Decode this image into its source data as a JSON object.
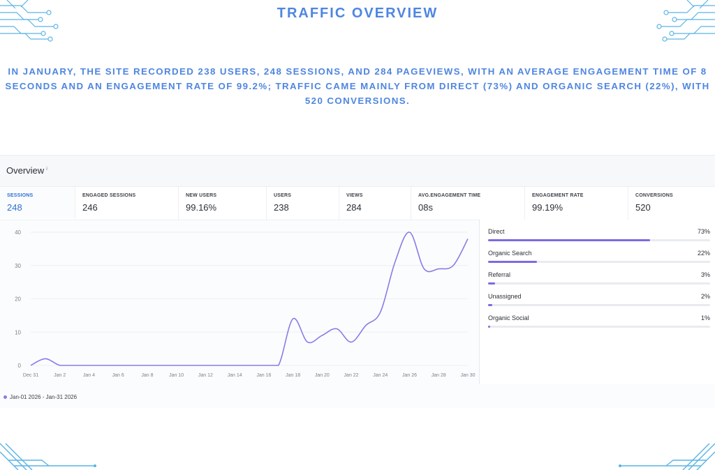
{
  "page_title": "TRAFFIC OVERVIEW",
  "summary": "IN JANUARY, THE SITE RECORDED 238 USERS, 248 SESSIONS, AND 284 PAGEVIEWS, WITH AN AVERAGE ENGAGEMENT TIME OF 8 SECONDS AND AN ENGAGEMENT RATE OF 99.2%; TRAFFIC CAME MAINLY FROM DIRECT (73%) AND ORGANIC SEARCH (22%), WITH 520 CONVERSIONS.",
  "overview": {
    "title": "Overview",
    "info_marker": "i",
    "metrics": [
      {
        "label": "SESSIONS",
        "value": "248"
      },
      {
        "label": "ENGAGED SESSIONS",
        "value": "246"
      },
      {
        "label": "NEW USERS",
        "value": "99.16%"
      },
      {
        "label": "USERS",
        "value": "238"
      },
      {
        "label": "VIEWS",
        "value": "284"
      },
      {
        "label": "AVG.ENGAGEMENT TIME",
        "value": "08s"
      },
      {
        "label": "ENGAGEMENT RATE",
        "value": "99.19%"
      },
      {
        "label": "CONVERSIONS",
        "value": "520"
      }
    ]
  },
  "sources": [
    {
      "name": "Direct",
      "pct": "73%",
      "fraction": 0.73
    },
    {
      "name": "Organic Search",
      "pct": "22%",
      "fraction": 0.22
    },
    {
      "name": "Referral",
      "pct": "3%",
      "fraction": 0.03
    },
    {
      "name": "Unassigned",
      "pct": "2%",
      "fraction": 0.02
    },
    {
      "name": "Organic Social",
      "pct": "1%",
      "fraction": 0.01
    }
  ],
  "colors": {
    "title": "#4f86e0",
    "line": "#8b7be6",
    "bar_fill": "#7b6be0",
    "active_metric": "#2f6fd1",
    "decor": "#5ab4e6"
  },
  "chart_data": {
    "type": "line",
    "series": [
      {
        "name": "Jan-01 2026 - Jan-31 2026",
        "x": [
          "Dec 31",
          "Jan 1",
          "Jan 2",
          "Jan 3",
          "Jan 4",
          "Jan 5",
          "Jan 6",
          "Jan 7",
          "Jan 8",
          "Jan 9",
          "Jan 10",
          "Jan 11",
          "Jan 12",
          "Jan 13",
          "Jan 14",
          "Jan 15",
          "Jan 16",
          "Jan 17",
          "Jan 18",
          "Jan 19",
          "Jan 20",
          "Jan 21",
          "Jan 22",
          "Jan 23",
          "Jan 24",
          "Jan 25",
          "Jan 26",
          "Jan 27",
          "Jan 28",
          "Jan 29",
          "Jan 30"
        ],
        "values": [
          0,
          2,
          0,
          0,
          0,
          0,
          0,
          0,
          0,
          0,
          0,
          0,
          0,
          0,
          0,
          0,
          0,
          0,
          14,
          7,
          9,
          11,
          7,
          12,
          16,
          31,
          40,
          29,
          29,
          30,
          38
        ]
      }
    ],
    "xticks": [
      "Dec 31",
      "Jan 2",
      "Jan 4",
      "Jan 6",
      "Jan 8",
      "Jan 10",
      "Jan 12",
      "Jan 14",
      "Jan 16",
      "Jan 18",
      "Jan 20",
      "Jan 22",
      "Jan 24",
      "Jan 26",
      "Jan 28",
      "Jan 30"
    ],
    "yticks": [
      0,
      10,
      20,
      30,
      40
    ],
    "ylim": [
      0,
      40
    ],
    "grid": true,
    "legend_position": "bottom-left"
  }
}
